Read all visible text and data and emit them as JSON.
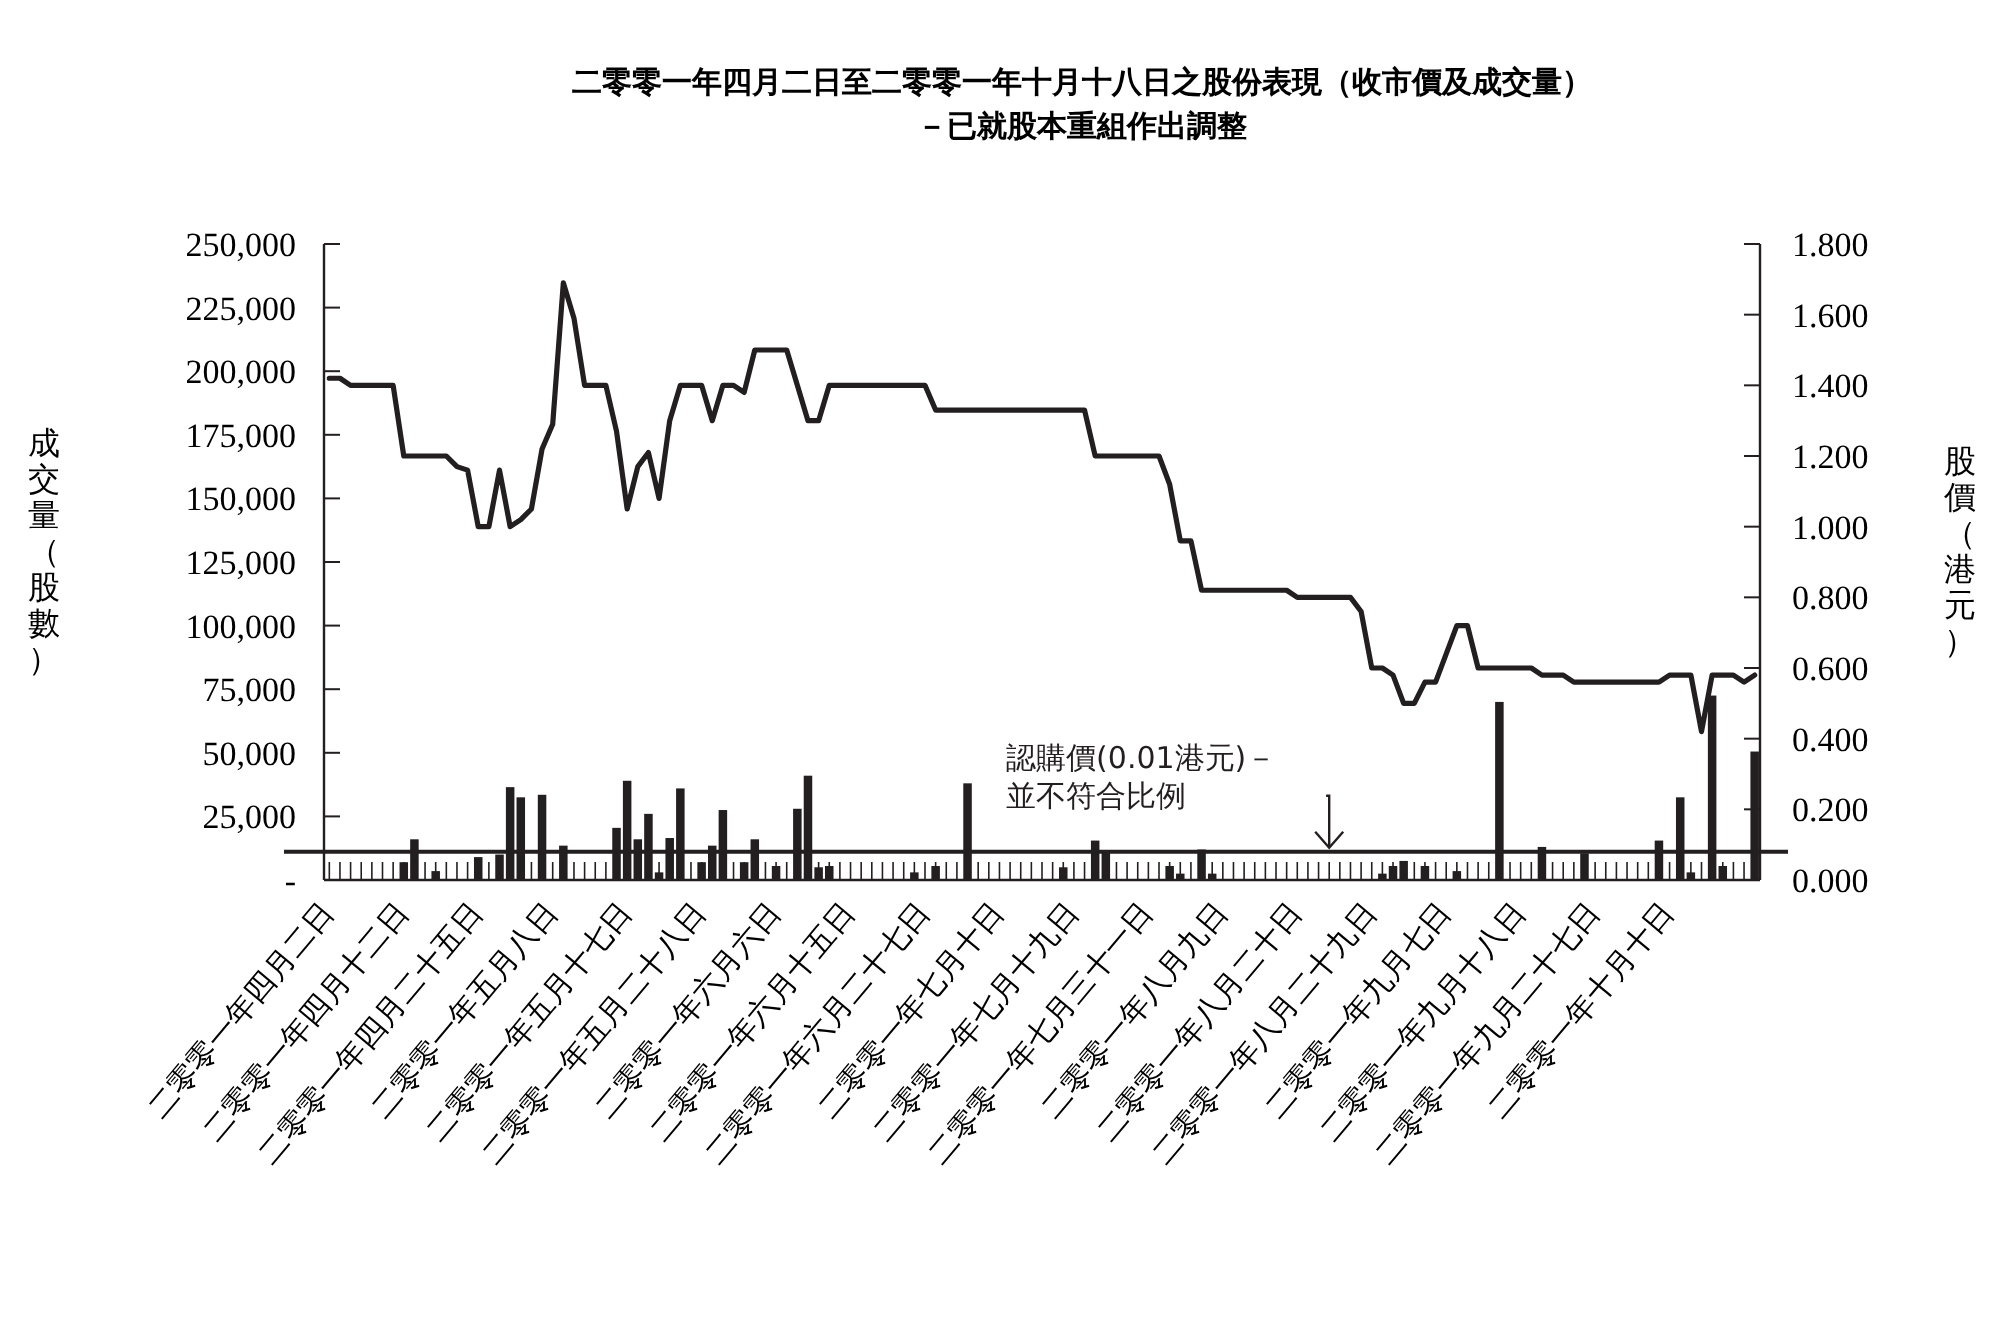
{
  "chart_data": {
    "type": "bar",
    "title": "二零零一年四月二日至二零零一年十月十八日之股份表現（收市價及成交量）",
    "subtitle": "－已就股本重組作出調整",
    "ylabel": "成交量（股數）",
    "y2label": "股價（港元）",
    "categories": [
      "二零零一年四月二日",
      null,
      null,
      null,
      null,
      null,
      null,
      "二零零一年四月十二日",
      null,
      null,
      null,
      null,
      null,
      null,
      "二零零一年四月二十五日",
      null,
      null,
      null,
      null,
      null,
      null,
      "二零零一年五月八日",
      null,
      null,
      null,
      null,
      null,
      null,
      "二零零一年五月十七日",
      null,
      null,
      null,
      null,
      null,
      null,
      "二零零一年五月二十八日",
      null,
      null,
      null,
      null,
      null,
      null,
      "二零零一年六月六日",
      null,
      null,
      null,
      null,
      null,
      null,
      "二零零一年六月十五日",
      null,
      null,
      null,
      null,
      null,
      null,
      "二零零一年六月二十七日",
      null,
      null,
      null,
      null,
      null,
      null,
      "二零零一年七月十日",
      null,
      null,
      null,
      null,
      null,
      null,
      "二零零一年七月十九日",
      null,
      null,
      null,
      null,
      null,
      null,
      "二零零一年七月三十一日",
      null,
      null,
      null,
      null,
      null,
      null,
      "二零零一年八月九日",
      null,
      null,
      null,
      null,
      null,
      null,
      "二零零一年八月二十日",
      null,
      null,
      null,
      null,
      null,
      null,
      "二零零一年八月二十九日",
      null,
      null,
      null,
      null,
      null,
      null,
      "二零零一年九月七日",
      null,
      null,
      null,
      null,
      null,
      null,
      "二零零一年九月十八日",
      null,
      null,
      null,
      null,
      null,
      null,
      "二零零一年九月二十七日",
      null,
      null,
      null,
      null,
      null,
      null,
      "二零零一年十月十日",
      null,
      null,
      null,
      null,
      null,
      null,
      null,
      null
    ],
    "series": [
      {
        "color": "#231f20",
        "values": [
          0,
          0,
          0,
          0,
          0,
          0,
          0,
          7000,
          16000,
          0,
          3500,
          0,
          0,
          0,
          9000,
          0,
          10000,
          36500,
          32500,
          0,
          33500,
          0,
          13500,
          0,
          0,
          0,
          0,
          20500,
          39000,
          16000,
          26000,
          3000,
          16500,
          36000,
          0,
          7000,
          13500,
          27500,
          0,
          7000,
          16000,
          0,
          5500,
          0,
          28000,
          41000,
          5000,
          5500,
          0,
          0,
          0,
          0,
          0,
          0,
          0,
          3000,
          0,
          5500,
          0,
          0,
          38000,
          0,
          0,
          0,
          0,
          0,
          0,
          0,
          0,
          5000,
          0,
          0,
          15500,
          11000,
          0,
          0,
          0,
          0,
          0,
          5500,
          2500,
          0,
          12000,
          2500,
          0,
          0,
          0,
          0,
          0,
          0,
          0,
          0,
          0,
          0,
          0,
          0,
          0,
          0,
          0,
          2500,
          5500,
          7500,
          0,
          5500,
          0,
          0,
          3500,
          0,
          0,
          0,
          70000,
          0,
          0,
          0,
          13000,
          0,
          0,
          0,
          10500,
          0,
          0,
          0,
          0,
          0,
          0,
          15500,
          0,
          32500,
          3000,
          0,
          72500,
          5500,
          0,
          0,
          50500
        ]
      },
      {
        "type": "line",
        "axis": "y2",
        "color": "#231f20",
        "values": [
          1.42,
          1.42,
          1.4,
          1.4,
          1.4,
          1.4,
          1.4,
          1.2,
          1.2,
          1.2,
          1.2,
          1.2,
          1.17,
          1.16,
          1.0,
          1.0,
          1.16,
          1.0,
          1.02,
          1.05,
          1.22,
          1.29,
          1.69,
          1.59,
          1.4,
          1.4,
          1.4,
          1.27,
          1.05,
          1.17,
          1.21,
          1.08,
          1.3,
          1.4,
          1.4,
          1.4,
          1.3,
          1.4,
          1.4,
          1.38,
          1.5,
          1.5,
          1.5,
          1.5,
          1.4,
          1.3,
          1.3,
          1.4,
          1.4,
          1.4,
          1.4,
          1.4,
          1.4,
          1.4,
          1.4,
          1.4,
          1.4,
          1.33,
          1.33,
          1.33,
          1.33,
          1.33,
          1.33,
          1.33,
          1.33,
          1.33,
          1.33,
          1.33,
          1.33,
          1.33,
          1.33,
          1.33,
          1.2,
          1.2,
          1.2,
          1.2,
          1.2,
          1.2,
          1.2,
          1.12,
          0.96,
          0.96,
          0.82,
          0.82,
          0.82,
          0.82,
          0.82,
          0.82,
          0.82,
          0.82,
          0.82,
          0.8,
          0.8,
          0.8,
          0.8,
          0.8,
          0.8,
          0.76,
          0.6,
          0.6,
          0.58,
          0.5,
          0.5,
          0.56,
          0.56,
          0.64,
          0.72,
          0.72,
          0.6,
          0.6,
          0.6,
          0.6,
          0.6,
          0.6,
          0.58,
          0.58,
          0.58,
          0.56,
          0.56,
          0.56,
          0.56,
          0.56,
          0.56,
          0.56,
          0.56,
          0.56,
          0.58,
          0.58,
          0.58,
          0.42,
          0.58,
          0.58,
          0.58,
          0.56,
          0.58
        ]
      }
    ],
    "ylim": [
      0,
      250000
    ],
    "yticks": [
      {
        "value": 0,
        "label": "-"
      },
      {
        "value": 25000,
        "label": "25,000"
      },
      {
        "value": 50000,
        "label": "50,000"
      },
      {
        "value": 75000,
        "label": "75,000"
      },
      {
        "value": 100000,
        "label": "100,000"
      },
      {
        "value": 125000,
        "label": "125,000"
      },
      {
        "value": 150000,
        "label": "150,000"
      },
      {
        "value": 175000,
        "label": "175,000"
      },
      {
        "value": 200000,
        "label": "200,000"
      },
      {
        "value": 225000,
        "label": "225,000"
      },
      {
        "value": 250000,
        "label": "250,000"
      }
    ],
    "y2lim": [
      0,
      1.8
    ],
    "y2ticks": [
      {
        "value": 0,
        "label": "0.000"
      },
      {
        "value": 0.2,
        "label": "0.200"
      },
      {
        "value": 0.4,
        "label": "0.400"
      },
      {
        "value": 0.6,
        "label": "0.600"
      },
      {
        "value": 0.8,
        "label": "0.800"
      },
      {
        "value": 1.0,
        "label": "1.000"
      },
      {
        "value": 1.2,
        "label": "1.200"
      },
      {
        "value": 1.4,
        "label": "1.400"
      },
      {
        "value": 1.6,
        "label": "1.600"
      },
      {
        "value": 1.8,
        "label": "1.800"
      }
    ],
    "ref_lines": [
      {
        "axis": "y2",
        "value": 0.08,
        "label": "認購價(0.01港元)－並不符合比例",
        "color": "#231f20"
      }
    ]
  }
}
